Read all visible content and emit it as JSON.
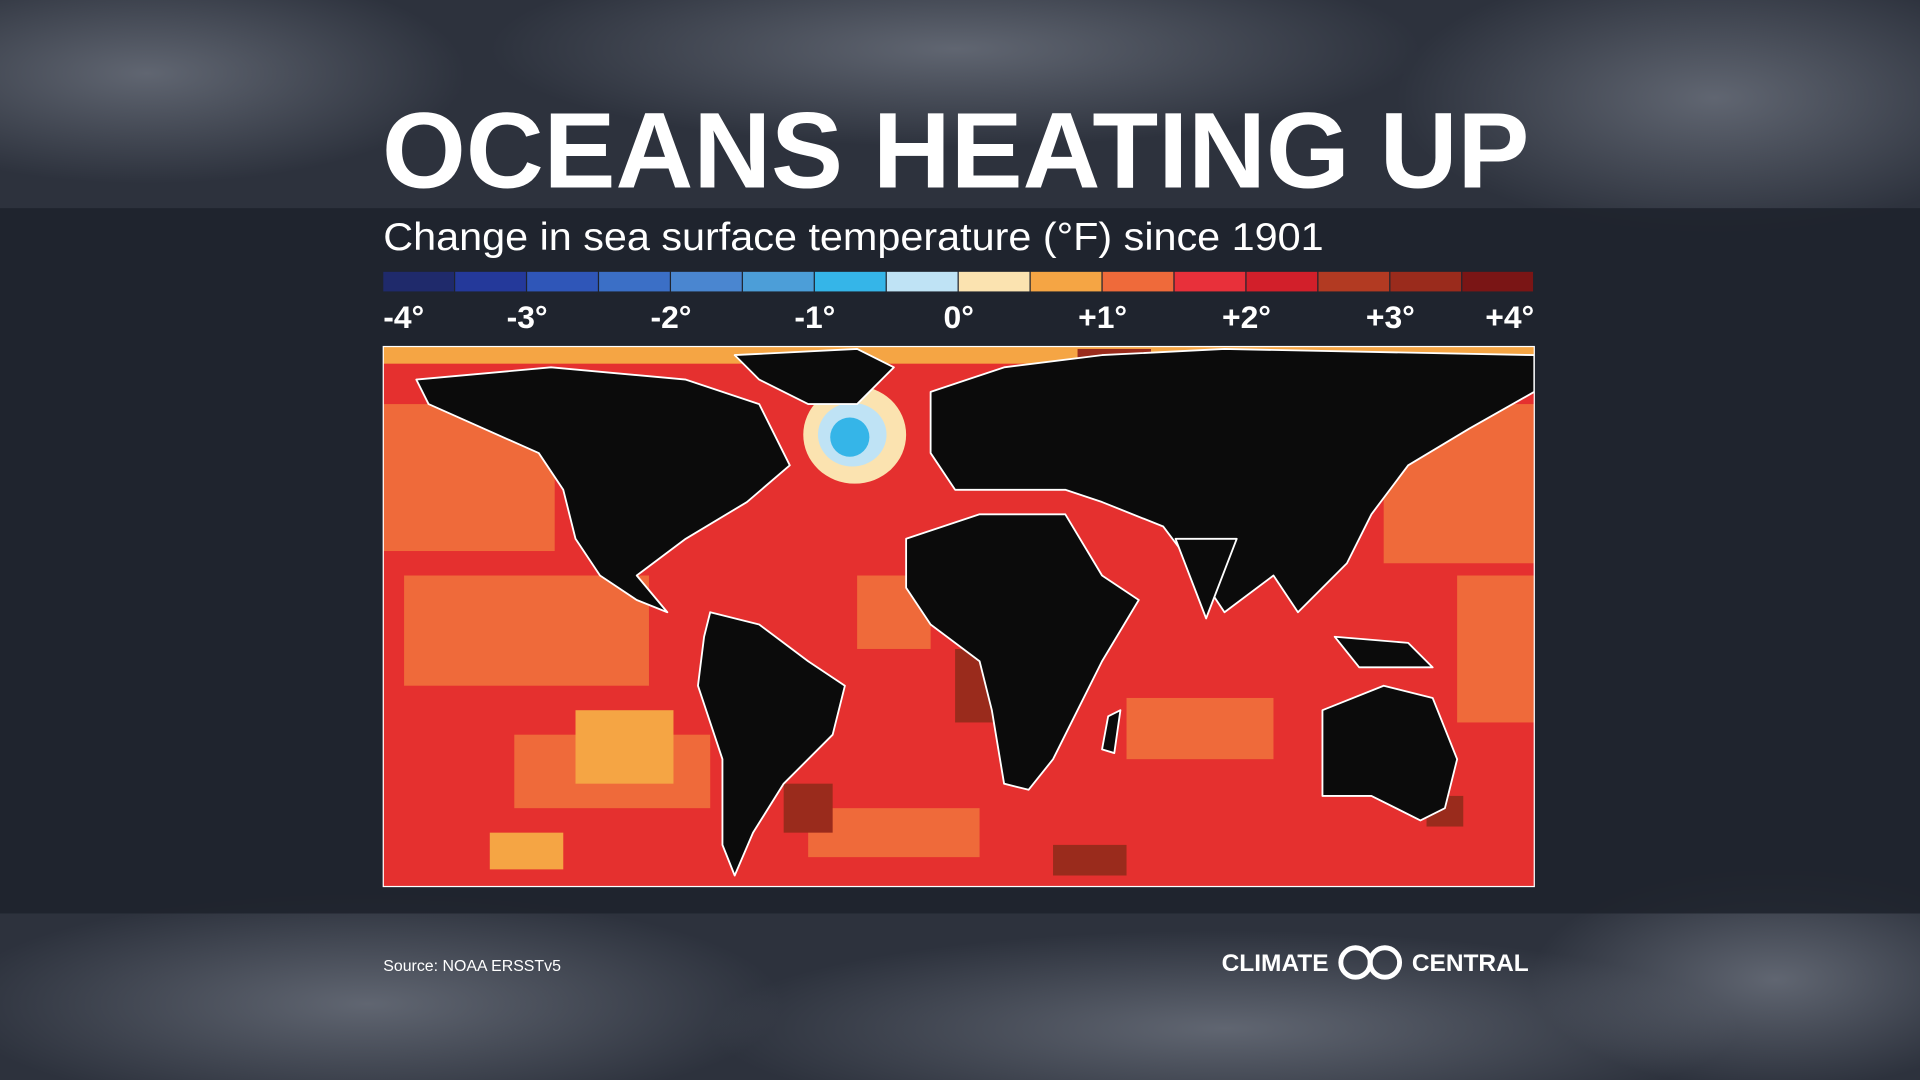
{
  "header": {
    "title": "OCEANS HEATING UP",
    "subtitle": "Change in sea surface temperature (°F) since 1901"
  },
  "legend": {
    "range": [
      -4,
      4
    ],
    "colors": [
      "#1f2a6b",
      "#24399a",
      "#2f56b8",
      "#3b6fc6",
      "#4a86d0",
      "#4c9ed8",
      "#35b5e8",
      "#bfe3f5",
      "#fbe3b0",
      "#f5a544",
      "#ef6a3a",
      "#e8303a",
      "#d21f2a",
      "#b23a22",
      "#9a2b1c",
      "#7a1515"
    ],
    "ticks": [
      {
        "value": -4,
        "label": "-4°"
      },
      {
        "value": -3,
        "label": "-3°"
      },
      {
        "value": -2,
        "label": "-2°"
      },
      {
        "value": -1,
        "label": "-1°"
      },
      {
        "value": 0,
        "label": "0°"
      },
      {
        "value": 1,
        "label": "+1°"
      },
      {
        "value": 2,
        "label": "+2°"
      },
      {
        "value": 3,
        "label": "+3°"
      },
      {
        "value": 4,
        "label": "+4°"
      }
    ]
  },
  "footer": {
    "source": "Source: NOAA ERSSTv5",
    "brand": {
      "left": "CLIMATE",
      "right": "CENTRAL"
    }
  }
}
